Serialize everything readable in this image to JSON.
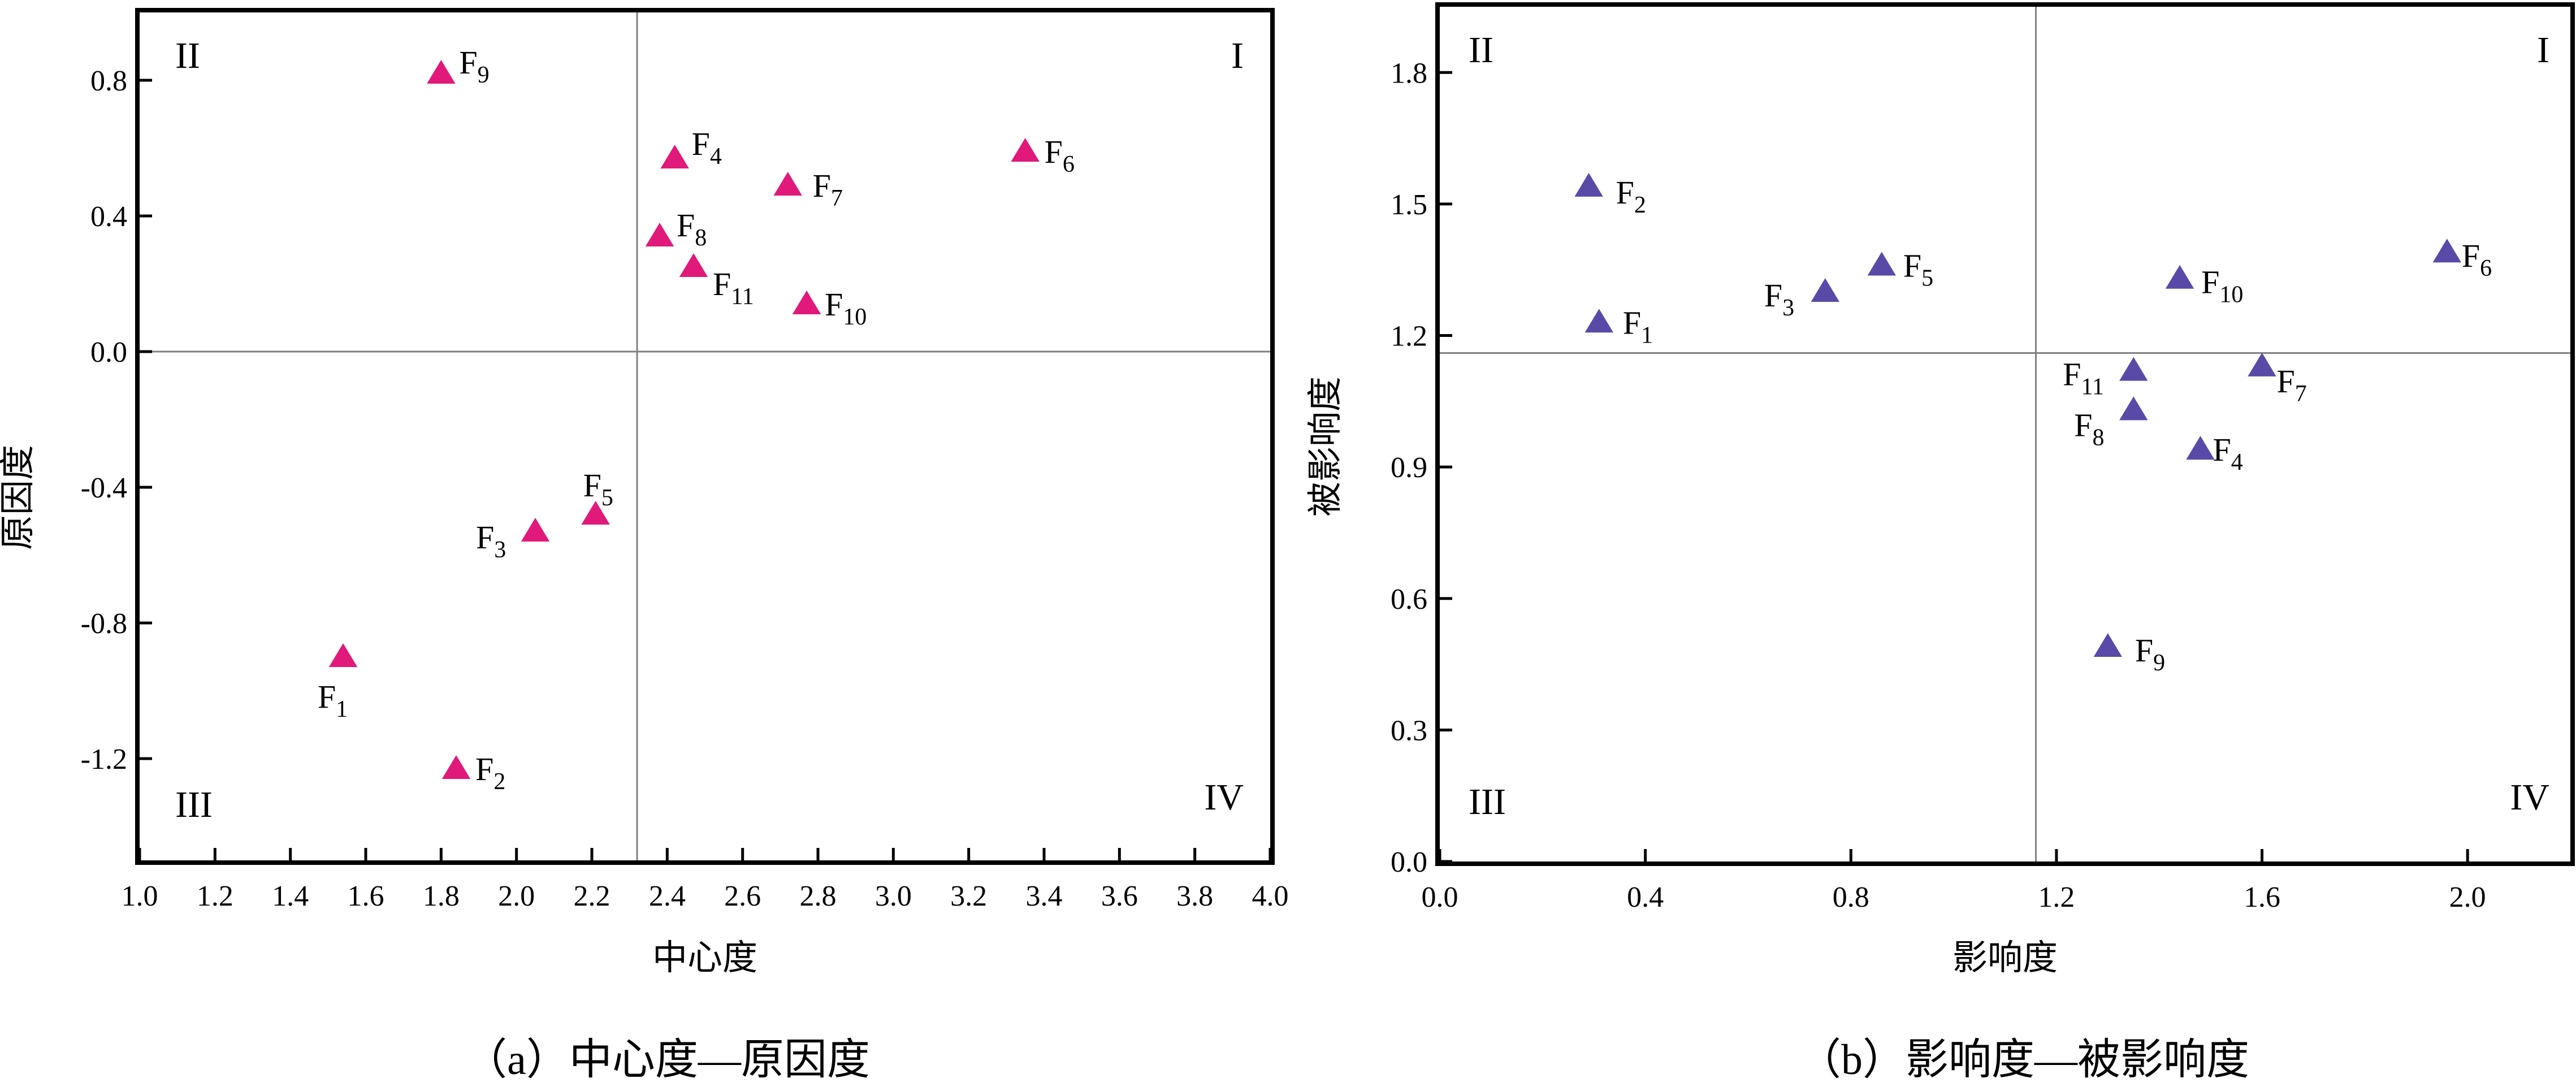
{
  "chart_data": [
    {
      "type": "scatter",
      "caption": "（a）中心度—原因度",
      "xlabel": "中心度",
      "ylabel": "原因度",
      "xlim": [
        1.0,
        4.0
      ],
      "ylim": [
        -1.5,
        1.0
      ],
      "xticks": [
        "1.0",
        "1.2",
        "1.4",
        "1.6",
        "1.8",
        "2.0",
        "2.2",
        "2.4",
        "2.6",
        "2.8",
        "3.0",
        "3.2",
        "3.4",
        "3.6",
        "3.8",
        "4.0"
      ],
      "yticks": [
        "0.8",
        "0.4",
        "0.0",
        "-0.4",
        "-0.8",
        "-1.2"
      ],
      "divider_x": 2.32,
      "divider_y": 0.0,
      "quadrants": {
        "q1": "I",
        "q2": "II",
        "q3": "III",
        "q4": "IV"
      },
      "color": "#e0197a",
      "points": [
        {
          "label": "F",
          "sub": "1",
          "x": 1.54,
          "y": -0.9
        },
        {
          "label": "F",
          "sub": "2",
          "x": 1.84,
          "y": -1.23
        },
        {
          "label": "F",
          "sub": "3",
          "x": 2.05,
          "y": -0.53
        },
        {
          "label": "F",
          "sub": "4",
          "x": 2.42,
          "y": 0.57
        },
        {
          "label": "F",
          "sub": "5",
          "x": 2.21,
          "y": -0.48
        },
        {
          "label": "F",
          "sub": "6",
          "x": 3.35,
          "y": 0.59
        },
        {
          "label": "F",
          "sub": "7",
          "x": 2.72,
          "y": 0.49
        },
        {
          "label": "F",
          "sub": "8",
          "x": 2.38,
          "y": 0.34
        },
        {
          "label": "F",
          "sub": "9",
          "x": 1.8,
          "y": 0.82
        },
        {
          "label": "F",
          "sub": "10",
          "x": 2.77,
          "y": 0.14
        },
        {
          "label": "F",
          "sub": "11",
          "x": 2.47,
          "y": 0.25
        }
      ]
    },
    {
      "type": "scatter",
      "caption": "（b）影响度—被影响度",
      "xlabel": "影响度",
      "ylabel": "被影响度",
      "xlim": [
        0.0,
        2.2
      ],
      "ylim": [
        0.0,
        1.95
      ],
      "xticks": [
        "0.0",
        "0.4",
        "0.8",
        "1.2",
        "1.6",
        "2.0"
      ],
      "yticks": [
        "1.8",
        "1.5",
        "1.2",
        "0.9",
        "0.6",
        "0.3",
        "0.0"
      ],
      "divider_x": 1.16,
      "divider_y": 1.16,
      "quadrants": {
        "q1": "I",
        "q2": "II",
        "q3": "III",
        "q4": "IV"
      },
      "color": "#5a4aa8",
      "points": [
        {
          "label": "F",
          "sub": "1",
          "x": 0.31,
          "y": 1.23
        },
        {
          "label": "F",
          "sub": "2",
          "x": 0.29,
          "y": 1.54
        },
        {
          "label": "F",
          "sub": "3",
          "x": 0.75,
          "y": 1.3
        },
        {
          "label": "F",
          "sub": "4",
          "x": 1.48,
          "y": 0.94
        },
        {
          "label": "F",
          "sub": "5",
          "x": 0.86,
          "y": 1.36
        },
        {
          "label": "F",
          "sub": "6",
          "x": 1.96,
          "y": 1.39
        },
        {
          "label": "F",
          "sub": "7",
          "x": 1.6,
          "y": 1.13
        },
        {
          "label": "F",
          "sub": "8",
          "x": 1.35,
          "y": 1.03
        },
        {
          "label": "F",
          "sub": "9",
          "x": 1.3,
          "y": 0.49
        },
        {
          "label": "F",
          "sub": "10",
          "x": 1.44,
          "y": 1.33
        },
        {
          "label": "F",
          "sub": "11",
          "x": 1.35,
          "y": 1.12
        }
      ]
    }
  ]
}
